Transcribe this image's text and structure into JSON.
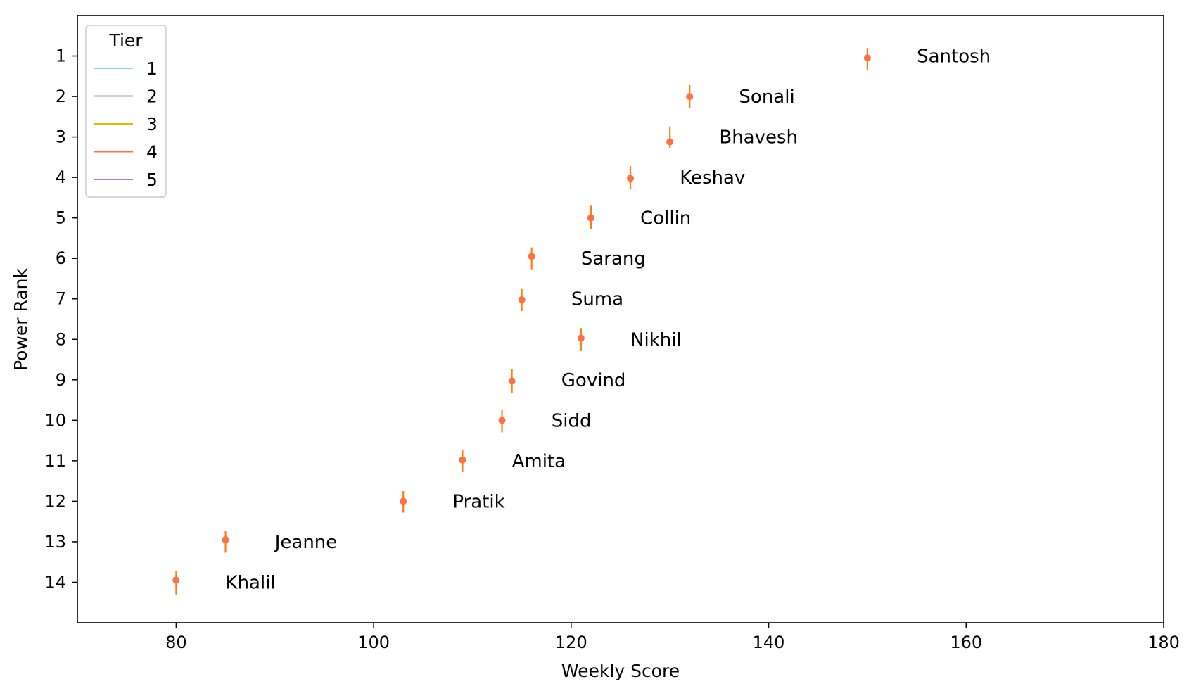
{
  "chart_data": {
    "type": "scatter",
    "title": "",
    "xlabel": "Weekly Score",
    "ylabel": "Power Rank",
    "xlim": [
      70,
      180
    ],
    "ylim": [
      0,
      15
    ],
    "y_inverted": true,
    "xticks": [
      80,
      100,
      120,
      140,
      160,
      180
    ],
    "yticks": [
      1,
      2,
      3,
      4,
      5,
      6,
      7,
      8,
      9,
      10,
      11,
      12,
      13,
      14
    ],
    "grid": false,
    "legend": {
      "title": "Tier",
      "placement": "top-left",
      "entries": [
        {
          "label": "1",
          "color": "#87ceeb"
        },
        {
          "label": "2",
          "color": "#7cc26a"
        },
        {
          "label": "3",
          "color": "#e6b800"
        },
        {
          "label": "4",
          "color": "#ff7043"
        },
        {
          "label": "5",
          "color": "#b07cb4"
        }
      ]
    },
    "marker_color": "#ff7043",
    "errorbar_color": "#ff7f0e",
    "series": [
      {
        "label": "Santosh",
        "rank": 1,
        "x": 150,
        "y": 1.05,
        "err_low": 0.25,
        "err_high": 0.3
      },
      {
        "label": "Sonali",
        "rank": 2,
        "x": 132,
        "y": 2.0,
        "err_low": 0.28,
        "err_high": 0.28
      },
      {
        "label": "Bhavesh",
        "rank": 3,
        "x": 130,
        "y": 3.12,
        "err_low": 0.38,
        "err_high": 0.15
      },
      {
        "label": "Keshav",
        "rank": 4,
        "x": 126,
        "y": 4.02,
        "err_low": 0.3,
        "err_high": 0.28
      },
      {
        "label": "Collin",
        "rank": 5,
        "x": 122,
        "y": 5.0,
        "err_low": 0.3,
        "err_high": 0.28
      },
      {
        "label": "Sarang",
        "rank": 6,
        "x": 116,
        "y": 5.95,
        "err_low": 0.22,
        "err_high": 0.32
      },
      {
        "label": "Suma",
        "rank": 7,
        "x": 115,
        "y": 7.02,
        "err_low": 0.28,
        "err_high": 0.28
      },
      {
        "label": "Nikhil",
        "rank": 8,
        "x": 121,
        "y": 7.97,
        "err_low": 0.25,
        "err_high": 0.32
      },
      {
        "label": "Govind",
        "rank": 9,
        "x": 114,
        "y": 9.03,
        "err_low": 0.3,
        "err_high": 0.3
      },
      {
        "label": "Sidd",
        "rank": 10,
        "x": 113,
        "y": 10.0,
        "err_low": 0.25,
        "err_high": 0.3
      },
      {
        "label": "Amita",
        "rank": 11,
        "x": 109,
        "y": 10.98,
        "err_low": 0.25,
        "err_high": 0.3
      },
      {
        "label": "Pratik",
        "rank": 12,
        "x": 103,
        "y": 12.0,
        "err_low": 0.25,
        "err_high": 0.28
      },
      {
        "label": "Jeanne",
        "rank": 13,
        "x": 85,
        "y": 12.95,
        "err_low": 0.22,
        "err_high": 0.32
      },
      {
        "label": "Khalil",
        "rank": 14,
        "x": 80,
        "y": 13.95,
        "err_low": 0.22,
        "err_high": 0.35
      }
    ]
  }
}
